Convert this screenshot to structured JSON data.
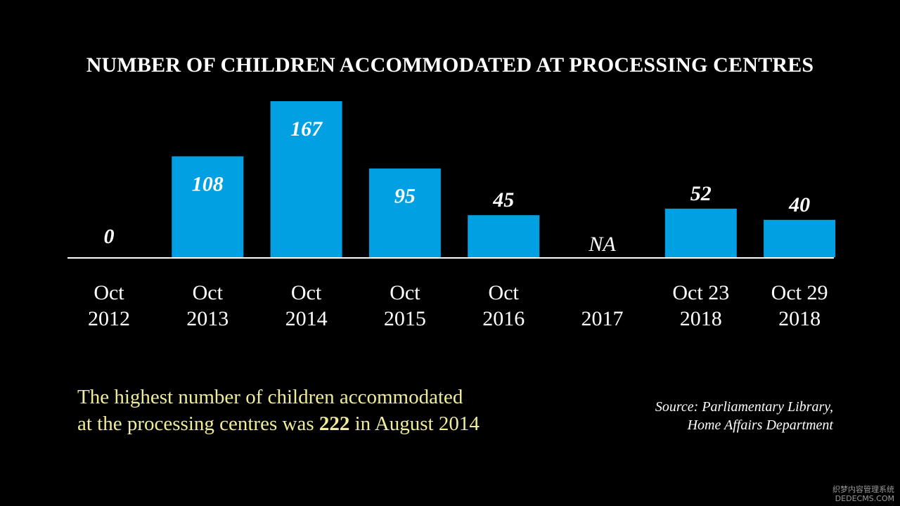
{
  "chart_data": {
    "type": "bar",
    "title": "NUMBER OF CHILDREN ACCOMMODATED AT PROCESSING CENTRES",
    "categories": [
      [
        "Oct",
        "2012"
      ],
      [
        "Oct",
        "2013"
      ],
      [
        "Oct",
        "2014"
      ],
      [
        "Oct",
        "2015"
      ],
      [
        "Oct",
        "2016"
      ],
      [
        "",
        "2017"
      ],
      [
        "Oct 23",
        "2018"
      ],
      [
        "Oct 29",
        "2018"
      ]
    ],
    "values": [
      0,
      108,
      167,
      95,
      45,
      null,
      52,
      40
    ],
    "value_labels": [
      "0",
      "108",
      "167",
      "95",
      "45",
      "NA",
      "52",
      "40"
    ],
    "ylim": [
      0,
      167
    ],
    "grid": false,
    "bar_color": "#00a0e3",
    "baseline_color": "#ffffff"
  },
  "highlight": {
    "line1": "The highest number of children accommodated",
    "line2_prefix": "at the processing centres was ",
    "line2_number": "222",
    "line2_suffix": " in August 2014",
    "color": "#f0ec9a"
  },
  "source": {
    "line1": "Source: Parliamentary Library,",
    "line2": "Home Affairs Department"
  },
  "watermark": {
    "line1": "织梦内容管理系统",
    "line2": "DEDECMS.COM"
  }
}
